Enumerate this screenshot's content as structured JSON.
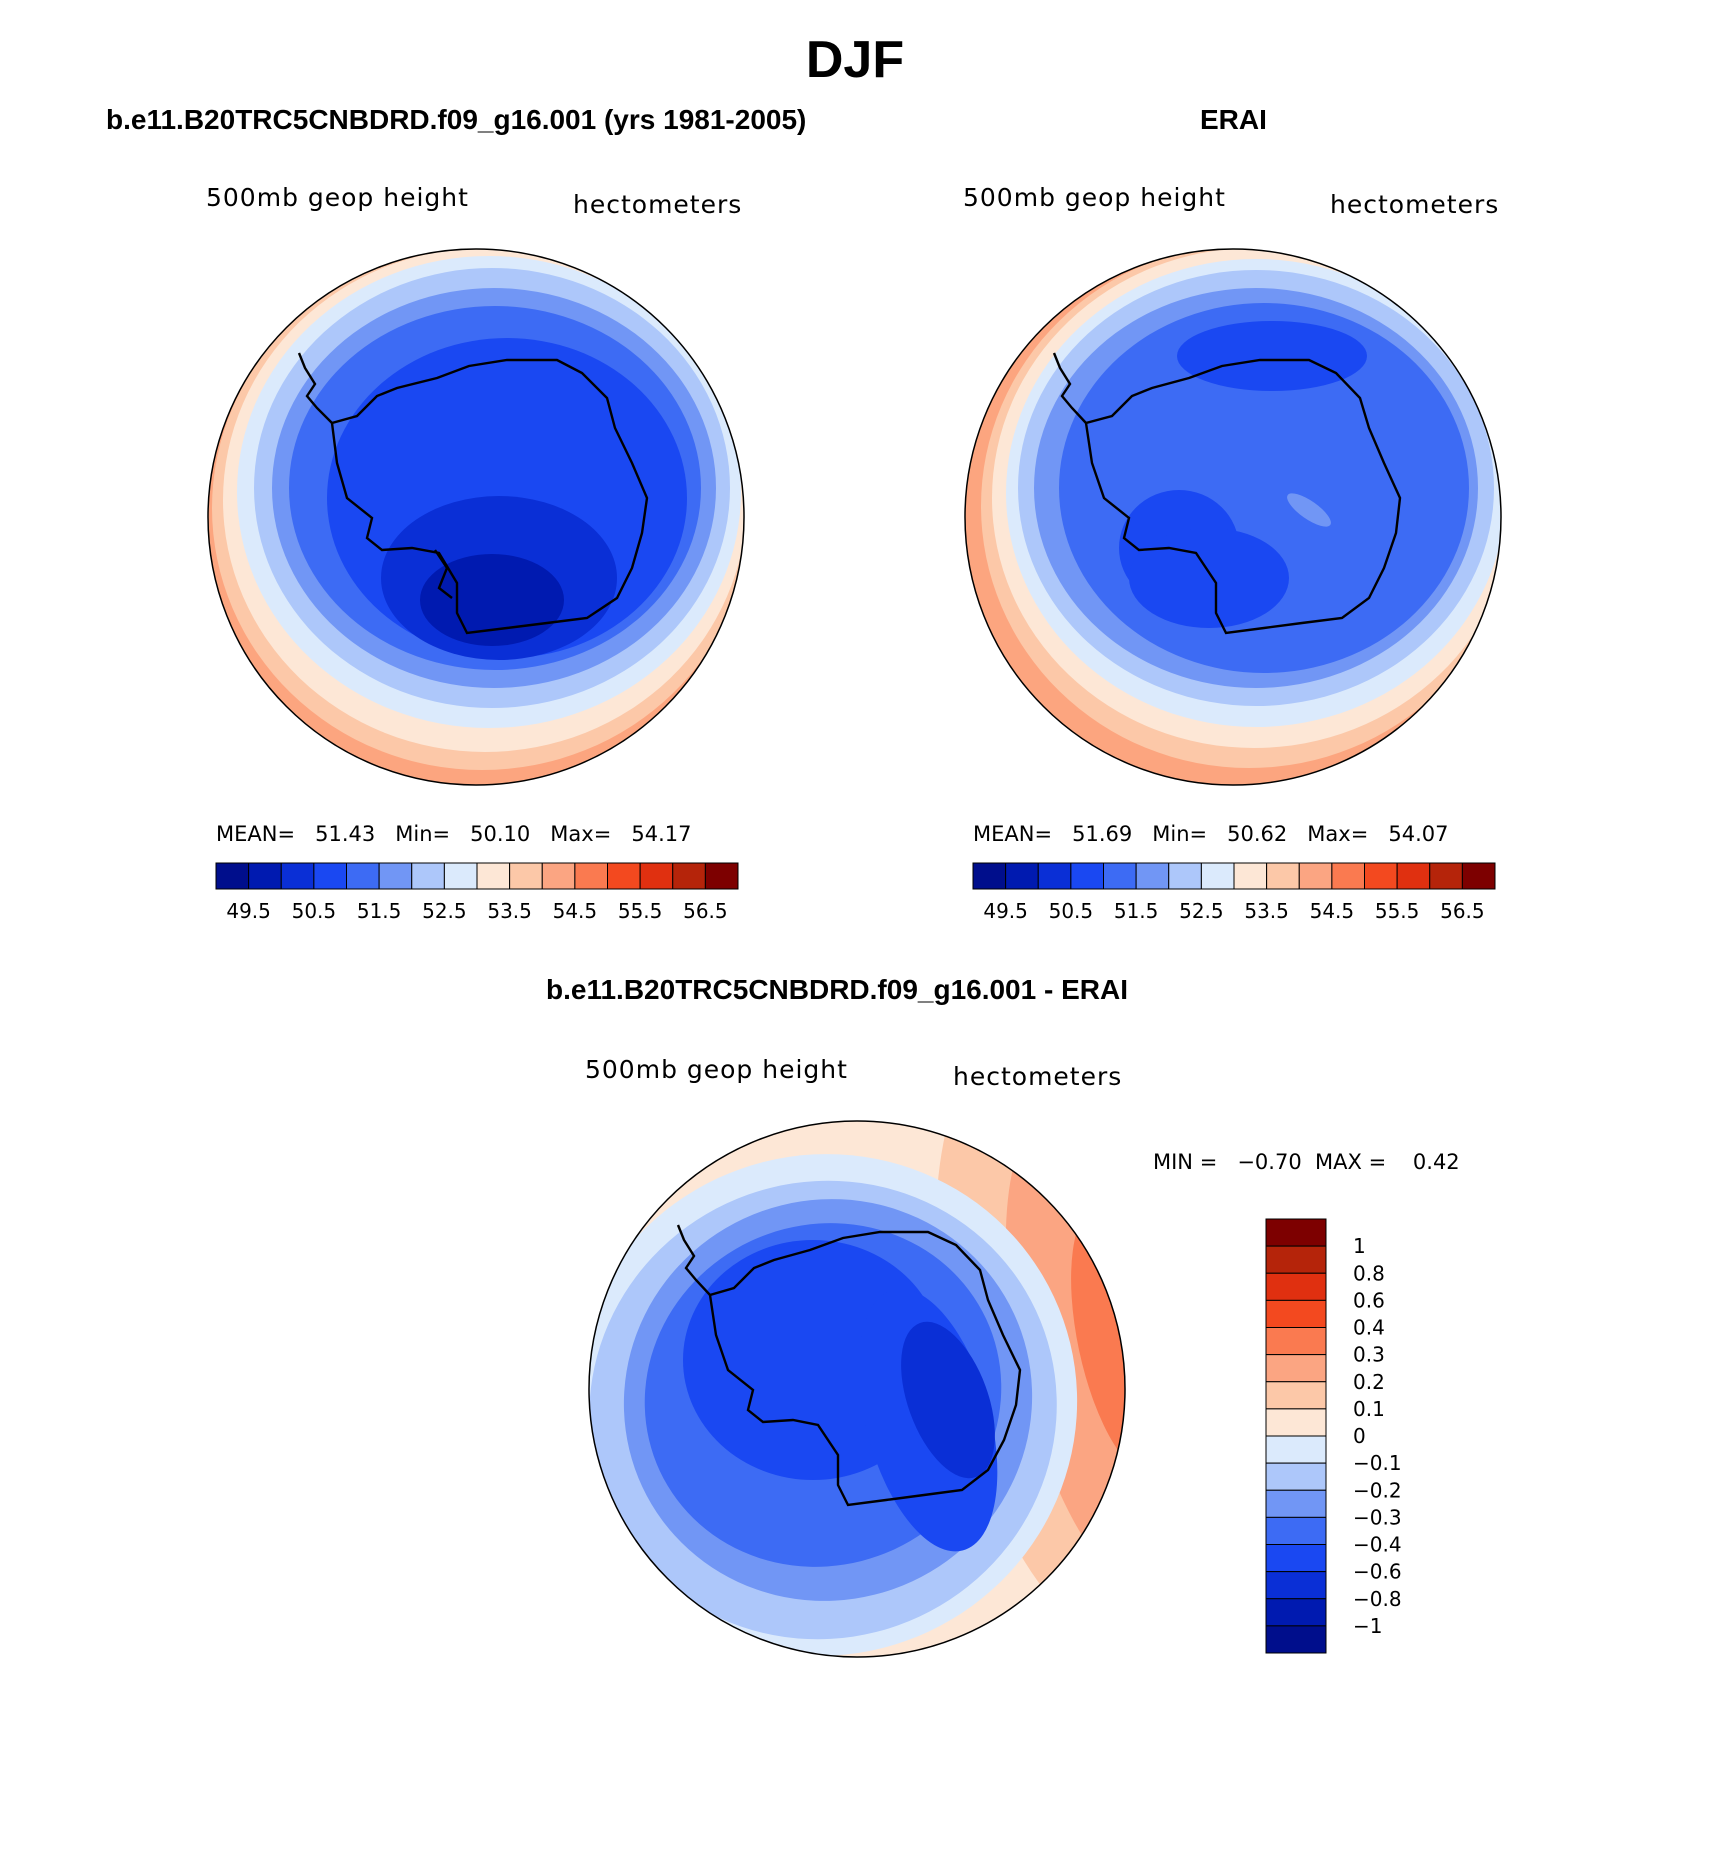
{
  "title": "DJF",
  "panels": [
    {
      "title": "b.e11.B20TRC5CNBDRD.f09_g16.001 (yrs 1981-2005)",
      "variable": "500mb geop height",
      "units": "hectometers",
      "stats": {
        "mean_label": "MEAN=",
        "mean": "51.43",
        "min_label": "Min=",
        "min": "50.10",
        "max_label": "Max=",
        "max": "54.17"
      }
    },
    {
      "title": "ERAI",
      "variable": "500mb geop height",
      "units": "hectometers",
      "stats": {
        "mean_label": "MEAN=",
        "mean": "51.69",
        "min_label": "Min=",
        "min": "50.62",
        "max_label": "Max=",
        "max": "54.07"
      }
    },
    {
      "title": "b.e11.B20TRC5CNBDRD.f09_g16.001 - ERAI",
      "variable": "500mb geop height",
      "units": "hectometers",
      "stats": {
        "min_label": "MIN =",
        "min": "−0.70",
        "max_label": "MAX =",
        "max": "0.42"
      }
    }
  ],
  "colorbar_horizontal": {
    "colors": [
      "#000e8c",
      "#001ab0",
      "#0a2fd6",
      "#1a48f2",
      "#3d6bf4",
      "#7196f5",
      "#adc7fa",
      "#dbeafc",
      "#fde7d6",
      "#fcc8a8",
      "#fba582",
      "#fa7a50",
      "#f3491f",
      "#e03010",
      "#b5240a",
      "#7d0000"
    ],
    "labels": [
      "49.5",
      "50.5",
      "51.5",
      "52.5",
      "53.5",
      "54.5",
      "55.5",
      "56.5"
    ]
  },
  "colorbar_vertical": {
    "colors": [
      "#7d0000",
      "#b5240a",
      "#e03010",
      "#f3491f",
      "#fa7a50",
      "#fba582",
      "#fcc8a8",
      "#fde7d6",
      "#dbeafc",
      "#adc7fa",
      "#7196f5",
      "#3d6bf4",
      "#1a48f2",
      "#0a2fd6",
      "#001ab0",
      "#000e8c"
    ],
    "labels": [
      "1",
      "0.8",
      "0.6",
      "0.4",
      "0.3",
      "0.2",
      "0.1",
      "0",
      "−0.1",
      "−0.2",
      "−0.3",
      "−0.4",
      "−0.6",
      "−0.8",
      "−1"
    ]
  }
}
